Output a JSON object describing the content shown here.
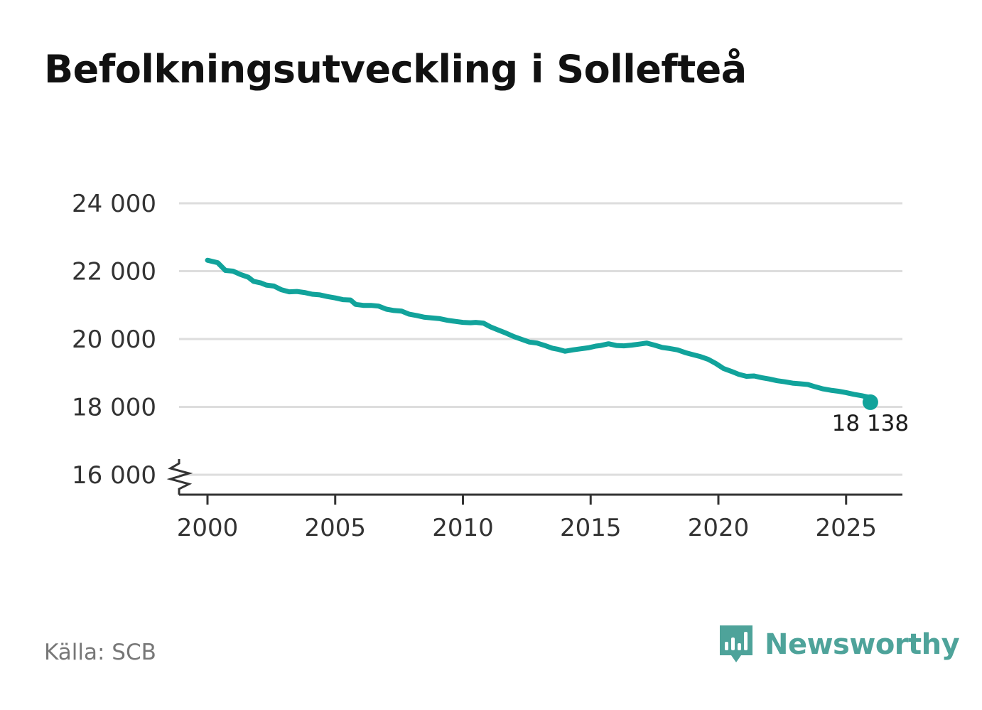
{
  "page": {
    "title": "Befolkningsutveckling i Sollefteå",
    "source": "Källa: SCB",
    "brand": "Newsworthy"
  },
  "colors": {
    "line": "#11a39b",
    "grid": "#dddddd",
    "axis": "#333333",
    "brand": "#4ea39a"
  },
  "icons": {
    "brand": "bar-chart-speech-bubble-icon",
    "axis_break": "axis-break-icon"
  },
  "chart_data": {
    "type": "line",
    "title": "Befolkningsutveckling i Sollefteå",
    "xlabel": "",
    "ylabel": "",
    "xlim": [
      1999.8,
      2027.2
    ],
    "ylim": [
      15700,
      24000
    ],
    "y_ticks": [
      16000,
      18000,
      20000,
      22000,
      24000
    ],
    "y_tick_labels": [
      "16 000",
      "18 000",
      "20 000",
      "22 000",
      "24 000"
    ],
    "x_ticks": [
      2000,
      2005,
      2010,
      2015,
      2020,
      2025
    ],
    "x_tick_labels": [
      "2000",
      "2005",
      "2010",
      "2015",
      "2020",
      "2025"
    ],
    "grid": true,
    "axis_break": true,
    "end_label": "18 138",
    "series": [
      {
        "name": "Befolkning",
        "x": [
          2000.0,
          2000.4,
          2000.7,
          2001.0,
          2001.3,
          2001.6,
          2001.8,
          2002.1,
          2002.3,
          2002.6,
          2002.9,
          2003.2,
          2003.5,
          2003.8,
          2004.1,
          2004.4,
          2004.7,
          2005.0,
          2005.3,
          2005.6,
          2005.8,
          2006.1,
          2006.4,
          2006.7,
          2007.0,
          2007.3,
          2007.6,
          2007.9,
          2008.2,
          2008.5,
          2008.8,
          2009.1,
          2009.4,
          2009.7,
          2010.0,
          2010.3,
          2010.5,
          2010.8,
          2011.1,
          2011.4,
          2011.7,
          2012.0,
          2012.3,
          2012.6,
          2012.9,
          2013.2,
          2013.5,
          2013.7,
          2014.0,
          2014.3,
          2014.6,
          2014.9,
          2015.2,
          2015.4,
          2015.7,
          2016.0,
          2016.3,
          2016.6,
          2016.9,
          2017.2,
          2017.5,
          2017.8,
          2018.1,
          2018.4,
          2018.7,
          2019.0,
          2019.3,
          2019.6,
          2019.9,
          2020.2,
          2020.5,
          2020.8,
          2021.1,
          2021.4,
          2021.7,
          2022.0,
          2022.3,
          2022.6,
          2022.9,
          2023.2,
          2023.5,
          2023.8,
          2024.1,
          2024.4,
          2024.7,
          2025.0,
          2025.3,
          2025.6,
          2025.9
        ],
        "y": [
          22320,
          22250,
          22020,
          22000,
          21900,
          21820,
          21700,
          21650,
          21590,
          21560,
          21450,
          21390,
          21400,
          21370,
          21320,
          21300,
          21250,
          21210,
          21160,
          21150,
          21020,
          20990,
          20990,
          20970,
          20880,
          20840,
          20820,
          20730,
          20690,
          20640,
          20620,
          20600,
          20550,
          20520,
          20490,
          20480,
          20490,
          20470,
          20350,
          20260,
          20170,
          20070,
          19990,
          19910,
          19880,
          19810,
          19730,
          19700,
          19640,
          19680,
          19710,
          19740,
          19790,
          19810,
          19860,
          19810,
          19800,
          19820,
          19850,
          19880,
          19820,
          19750,
          19720,
          19680,
          19600,
          19540,
          19480,
          19400,
          19280,
          19130,
          19050,
          18960,
          18900,
          18910,
          18860,
          18820,
          18770,
          18740,
          18700,
          18680,
          18660,
          18590,
          18530,
          18490,
          18460,
          18420,
          18370,
          18330,
          18280
        ]
      }
    ],
    "end_point": {
      "x": 2025.95,
      "y": 18138
    }
  }
}
